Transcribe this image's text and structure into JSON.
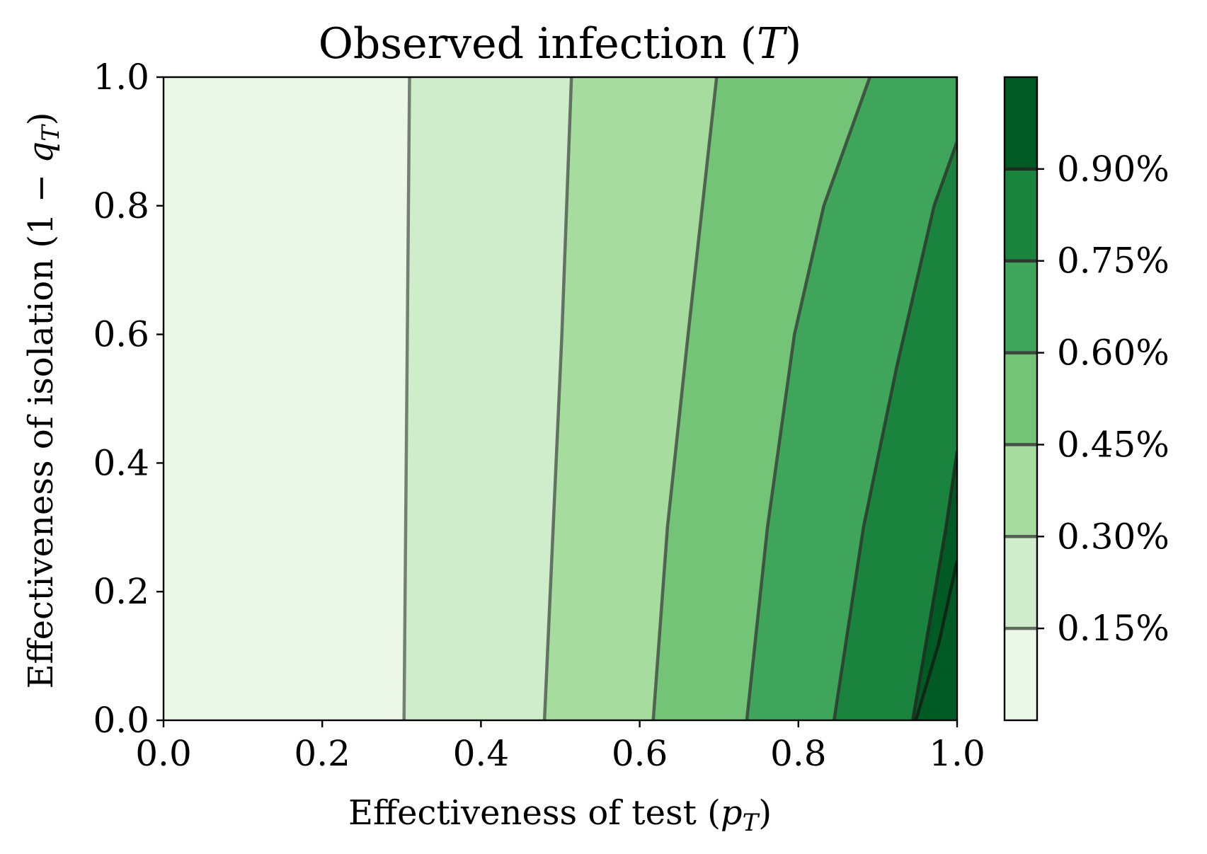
{
  "chart_data": {
    "type": "heatmap",
    "subtype": "filled-contour",
    "title": "Observed infection (T)",
    "xlabel": "Effectiveness of test (p_T)",
    "ylabel": "Effectiveness of isolation (1 − q_T)",
    "xlim": [
      0.0,
      1.0
    ],
    "ylim": [
      0.0,
      1.0
    ],
    "x_ticks": [
      "0.0",
      "0.2",
      "0.4",
      "0.6",
      "0.8",
      "1.0"
    ],
    "y_ticks": [
      "0.0",
      "0.2",
      "0.4",
      "0.6",
      "0.8",
      "1.0"
    ],
    "colorbar": {
      "range": [
        0,
        1.05
      ],
      "unit": "%",
      "tick_values": [
        0.15,
        0.3,
        0.45,
        0.6,
        0.75,
        0.9
      ],
      "tick_labels": [
        "0.15%",
        "0.30%",
        "0.45%",
        "0.60%",
        "0.75%",
        "0.90%"
      ]
    },
    "contour_levels": [
      0.15,
      0.3,
      0.45,
      0.6,
      0.75,
      0.9
    ],
    "band_colors": [
      "#ebf7e7",
      "#cfedca",
      "#a6dc9e",
      "#74c477",
      "#3fa55b",
      "#1a843f",
      "#005a23"
    ],
    "contour_lines": [
      {
        "level": 0.15,
        "points": [
          [
            0.303,
            0.0
          ],
          [
            0.31,
            1.0
          ]
        ]
      },
      {
        "level": 0.3,
        "points": [
          [
            0.48,
            0.0
          ],
          [
            0.491,
            0.3
          ],
          [
            0.502,
            0.6
          ],
          [
            0.514,
            1.0
          ]
        ]
      },
      {
        "level": 0.45,
        "points": [
          [
            0.617,
            0.0
          ],
          [
            0.635,
            0.3
          ],
          [
            0.661,
            0.6
          ],
          [
            0.697,
            1.0
          ]
        ]
      },
      {
        "level": 0.6,
        "points": [
          [
            0.735,
            0.0
          ],
          [
            0.761,
            0.3
          ],
          [
            0.795,
            0.6
          ],
          [
            0.832,
            0.8
          ],
          [
            0.89,
            1.0
          ]
        ]
      },
      {
        "level": 0.75,
        "points": [
          [
            0.845,
            0.0
          ],
          [
            0.882,
            0.3
          ],
          [
            0.924,
            0.55
          ],
          [
            0.971,
            0.8
          ],
          [
            1.0,
            0.9
          ],
          [
            1.0,
            1.0
          ]
        ]
      },
      {
        "level": 0.9,
        "points": [
          [
            0.944,
            0.0
          ],
          [
            0.986,
            0.3
          ],
          [
            1.0,
            0.418
          ]
        ]
      },
      {
        "level": 1.05,
        "points": [
          [
            0.948,
            0.0
          ],
          [
            0.977,
            0.12
          ],
          [
            1.0,
            0.248
          ]
        ]
      }
    ],
    "grid": false,
    "legend": "colorbar-right"
  }
}
